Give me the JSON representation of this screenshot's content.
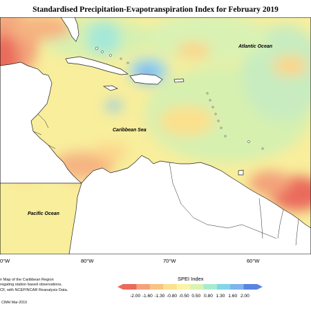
{
  "title": "Standardised Precipitation-Evapotranspiration Index for February 2019",
  "labels": {
    "atlantic": "Atlantic Ocean",
    "caribbean": "Caribbean Sea",
    "pacific": "Pacific Ocean"
  },
  "longitude_ticks": [
    "0°W",
    "80°W",
    "70°W",
    "60°W"
  ],
  "notes": [
    "n Map of the Caribbean Region",
    "regating station based observations,",
    "CF, with NCEP/NCAR Reanalysis Data."
  ],
  "credit": "CIMH Mar-2019",
  "legend": {
    "title": "SPEI Index",
    "ticks": [
      "-2.00",
      "-1.60",
      "-1.30",
      "-0.80",
      "-0.50",
      "0.50",
      "0.80",
      "1.30",
      "1.60",
      "2.00"
    ],
    "colors": [
      "#ea6a5c",
      "#f3a27a",
      "#f8c384",
      "#fbe08d",
      "#fbf3a5",
      "#d9f3b4",
      "#a8ecd0",
      "#7ed8e9",
      "#7fb4ec",
      "#5a84e2"
    ]
  }
}
